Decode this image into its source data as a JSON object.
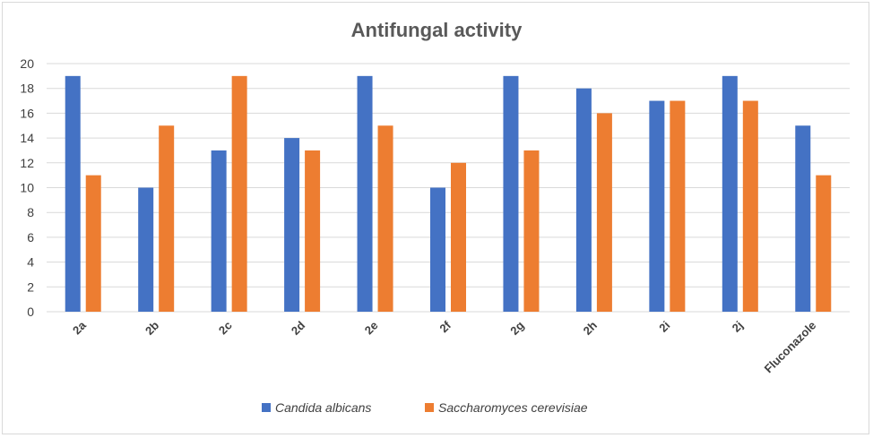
{
  "chart_data": {
    "type": "bar",
    "title": "Antifungal activity",
    "xlabel": "",
    "ylabel": "",
    "categories": [
      "2a",
      "2b",
      "2c",
      "2d",
      "2e",
      "2f",
      "2g",
      "2h",
      "2i",
      "2j",
      "Fluconazole"
    ],
    "series": [
      {
        "name": "Candida albicans",
        "color": "#4472c4",
        "values": [
          19,
          10,
          13,
          14,
          19,
          10,
          19,
          18,
          17,
          19,
          15
        ]
      },
      {
        "name": "Saccharomyces cerevisiae",
        "color": "#ed7d31",
        "values": [
          11,
          15,
          19,
          13,
          15,
          12,
          13,
          16,
          17,
          17,
          11
        ]
      }
    ],
    "ylim": [
      0,
      20
    ],
    "yticks": [
      0,
      2,
      4,
      6,
      8,
      10,
      12,
      14,
      16,
      18,
      20
    ],
    "grid": true,
    "gridColor": "#d9d9d9",
    "legend": "bottom"
  }
}
